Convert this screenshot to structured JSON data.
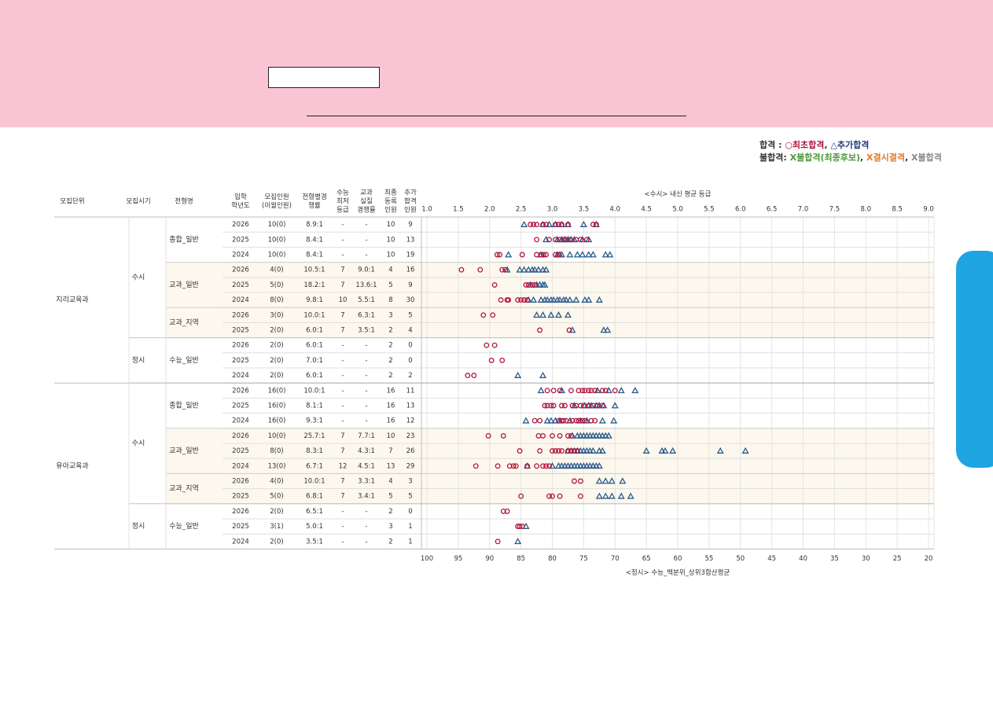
{
  "legend": {
    "pass_label": "합격",
    "pass_colon": " : ",
    "first_mark": "○",
    "first_label": "최초합격",
    "comma": ", ",
    "add_mark": "△",
    "add_label": "추가합격",
    "fail_label": "불합격:",
    "fail_waitlist": "X불합격(최종후보)",
    "fail_absent": "X결시결격",
    "fail_other": "X불합격"
  },
  "colors": {
    "first_pass": "#b3173e",
    "additional_pass": "#2a5a8c",
    "row_alt": "#fdf8ee"
  },
  "chart_data": {
    "type": "scatter",
    "title": "<수시> 내신 평균 등급",
    "xlabel": "<정시> 수능_백분위_상위3합산평균",
    "top_axis_ticks": [
      "1.0",
      "1.5",
      "2.0",
      "2.5",
      "3.0",
      "3.5",
      "4.0",
      "4.5",
      "5.0",
      "5.5",
      "6.0",
      "6.5",
      "7.0",
      "7.5",
      "8.0",
      "8.5",
      "9.0"
    ],
    "top_axis_range": [
      1.0,
      9.0
    ],
    "bottom_axis_ticks": [
      "100",
      "95",
      "90",
      "85",
      "80",
      "75",
      "70",
      "65",
      "60",
      "55",
      "50",
      "45",
      "40",
      "35",
      "30",
      "25",
      "20"
    ],
    "bottom_axis_range": [
      100,
      20
    ],
    "columns": [
      "모집단위",
      "모집시기",
      "전형명",
      "입학\n학년도",
      "모집인원\n(이월인원)",
      "전형별경\n쟁률",
      "수능\n최저\n등급",
      "교과\n실질\n경쟁률",
      "최종\n등록\n인원",
      "추가\n합격\n인원"
    ],
    "groups": [
      {
        "unit": "지리교육과",
        "periods": [
          {
            "name": "수시",
            "types": [
              {
                "name": "종합_일반",
                "rows": [
                  {
                    "year": "2026",
                    "quota": "10(0)",
                    "ratio": "8.9:1",
                    "min": "-",
                    "real": "-",
                    "enroll": "10",
                    "extra": "9",
                    "first": [
                      2.65,
                      2.7,
                      2.75,
                      2.85,
                      2.9,
                      3.05,
                      3.1,
                      3.15,
                      3.25,
                      3.65,
                      3.7
                    ],
                    "additional": [
                      2.55,
                      2.85,
                      2.95,
                      3.05,
                      3.15,
                      3.25,
                      3.5,
                      3.7
                    ]
                  },
                  {
                    "year": "2025",
                    "quota": "10(0)",
                    "ratio": "8.4:1",
                    "min": "-",
                    "real": "-",
                    "enroll": "10",
                    "extra": "13",
                    "first": [
                      2.75,
                      2.95,
                      3.05,
                      3.12,
                      3.18,
                      3.22,
                      3.28,
                      3.38,
                      3.45,
                      3.55
                    ],
                    "additional": [
                      2.9,
                      3.08,
                      3.15,
                      3.2,
                      3.25,
                      3.3,
                      3.35,
                      3.48,
                      3.58
                    ]
                  },
                  {
                    "year": "2024",
                    "quota": "10(0)",
                    "ratio": "8.4:1",
                    "min": "-",
                    "real": "-",
                    "enroll": "10",
                    "extra": "19",
                    "first": [
                      2.12,
                      2.16,
                      2.52,
                      2.75,
                      2.82,
                      2.86,
                      2.9,
                      3.05,
                      3.1
                    ],
                    "additional": [
                      2.3,
                      2.82,
                      3.08,
                      3.12,
                      3.15,
                      3.28,
                      3.4,
                      3.48,
                      3.58,
                      3.65,
                      3.85,
                      3.92
                    ]
                  }
                ]
              },
              {
                "name": "교과_일반",
                "rows": [
                  {
                    "year": "2026",
                    "quota": "4(0)",
                    "ratio": "10.5:1",
                    "min": "7",
                    "real": "9.0:1",
                    "enroll": "4",
                    "extra": "16",
                    "first": [
                      1.55,
                      1.85,
                      2.2,
                      2.25
                    ],
                    "additional": [
                      2.28,
                      2.48,
                      2.55,
                      2.62,
                      2.68,
                      2.72,
                      2.78,
                      2.85,
                      2.9
                    ]
                  },
                  {
                    "year": "2025",
                    "quota": "5(0)",
                    "ratio": "18.2:1",
                    "min": "7",
                    "real": "13.6:1",
                    "enroll": "5",
                    "extra": "9",
                    "first": [
                      2.08,
                      2.58,
                      2.62,
                      2.68,
                      2.72
                    ],
                    "additional": [
                      2.65,
                      2.75,
                      2.8,
                      2.85,
                      2.88
                    ]
                  },
                  {
                    "year": "2024",
                    "quota": "8(0)",
                    "ratio": "9.8:1",
                    "min": "10",
                    "real": "5.5:1",
                    "enroll": "8",
                    "extra": "30",
                    "first": [
                      2.18,
                      2.28,
                      2.3,
                      2.45,
                      2.5,
                      2.55,
                      2.6
                    ],
                    "additional": [
                      2.62,
                      2.7,
                      2.82,
                      2.88,
                      2.92,
                      2.98,
                      3.02,
                      3.08,
                      3.12,
                      3.18,
                      3.22,
                      3.28,
                      3.38,
                      3.52,
                      3.58,
                      3.75
                    ]
                  }
                ]
              },
              {
                "name": "교과_지역",
                "rows": [
                  {
                    "year": "2026",
                    "quota": "3(0)",
                    "ratio": "10.0:1",
                    "min": "7",
                    "real": "6.3:1",
                    "enroll": "3",
                    "extra": "5",
                    "first": [
                      1.9,
                      2.05
                    ],
                    "additional": [
                      2.75,
                      2.85,
                      2.98,
                      3.1,
                      3.25
                    ]
                  },
                  {
                    "year": "2025",
                    "quota": "2(0)",
                    "ratio": "6.0:1",
                    "min": "7",
                    "real": "3.5:1",
                    "enroll": "2",
                    "extra": "4",
                    "first": [
                      2.8,
                      3.27
                    ],
                    "additional": [
                      3.32,
                      3.82,
                      3.88
                    ]
                  }
                ]
              }
            ]
          },
          {
            "name": "정시",
            "types": [
              {
                "name": "수능_일반",
                "rows": [
                  {
                    "year": "2026",
                    "quota": "2(0)",
                    "ratio": "6.0:1",
                    "min": "-",
                    "real": "-",
                    "enroll": "2",
                    "extra": "0",
                    "first": [
                      90.5,
                      89.2
                    ],
                    "additional": []
                  },
                  {
                    "year": "2025",
                    "quota": "2(0)",
                    "ratio": "7.0:1",
                    "min": "-",
                    "real": "-",
                    "enroll": "2",
                    "extra": "0",
                    "first": [
                      89.7,
                      88.0
                    ],
                    "additional": []
                  },
                  {
                    "year": "2024",
                    "quota": "2(0)",
                    "ratio": "6.0:1",
                    "min": "-",
                    "real": "-",
                    "enroll": "2",
                    "extra": "2",
                    "first": [
                      93.5,
                      92.5
                    ],
                    "additional": [
                      85.5,
                      81.5
                    ]
                  }
                ]
              }
            ]
          }
        ]
      },
      {
        "unit": "유아교육과",
        "periods": [
          {
            "name": "수시",
            "types": [
              {
                "name": "종합_일반",
                "rows": [
                  {
                    "year": "2026",
                    "quota": "16(0)",
                    "ratio": "10.0:1",
                    "min": "-",
                    "real": "-",
                    "enroll": "16",
                    "extra": "11",
                    "first": [
                      2.92,
                      3.02,
                      3.12,
                      3.3,
                      3.42,
                      3.48,
                      3.52,
                      3.58,
                      3.62,
                      3.68,
                      3.8,
                      3.85,
                      4.0
                    ],
                    "additional": [
                      2.82,
                      3.15,
                      3.72,
                      3.9,
                      4.1,
                      4.32
                    ]
                  },
                  {
                    "year": "2025",
                    "quota": "16(0)",
                    "ratio": "8.1:1",
                    "min": "-",
                    "real": "-",
                    "enroll": "16",
                    "extra": "13",
                    "first": [
                      2.88,
                      2.92,
                      2.98,
                      3.02,
                      3.15,
                      3.2,
                      3.32,
                      3.38,
                      3.45,
                      3.5,
                      3.58,
                      3.65,
                      3.72,
                      3.8
                    ],
                    "additional": [
                      3.35,
                      3.52,
                      3.58,
                      3.62,
                      3.7,
                      3.75,
                      3.82,
                      4.0
                    ]
                  },
                  {
                    "year": "2024",
                    "quota": "16(0)",
                    "ratio": "9.3:1",
                    "min": "-",
                    "real": "-",
                    "enroll": "16",
                    "extra": "12",
                    "first": [
                      2.72,
                      2.8,
                      3.1,
                      3.15,
                      3.18,
                      3.22,
                      3.32,
                      3.38,
                      3.42,
                      3.48,
                      3.52,
                      3.62,
                      3.68
                    ],
                    "additional": [
                      2.58,
                      2.92,
                      2.98,
                      3.05,
                      3.12,
                      3.28,
                      3.45,
                      3.55,
                      3.8,
                      3.98
                    ]
                  }
                ]
              },
              {
                "name": "교과_일반",
                "rows": [
                  {
                    "year": "2026",
                    "quota": "10(0)",
                    "ratio": "25.7:1",
                    "min": "7",
                    "real": "7.7:1",
                    "enroll": "10",
                    "extra": "23",
                    "first": [
                      90.2,
                      87.8,
                      82.2,
                      81.5,
                      80.0,
                      78.8,
                      77.5,
                      77.0
                    ],
                    "additional": [
                      76.8,
                      76.0,
                      75.5,
                      75.0,
                      74.5,
                      74.0,
                      73.5,
                      73.0,
                      72.5,
                      72.0,
                      71.5,
                      71.0
                    ]
                  },
                  {
                    "year": "2025",
                    "quota": "8(0)",
                    "ratio": "8.3:1",
                    "min": "7",
                    "real": "4.3:1",
                    "enroll": "7",
                    "extra": "26",
                    "first": [
                      85.2,
                      82.0,
                      80.0,
                      79.5,
                      79.0,
                      78.5,
                      77.5,
                      77.0,
                      76.5,
                      76.0
                    ],
                    "additional": [
                      77.5,
                      77.0,
                      76.5,
                      76.0,
                      75.5,
                      75.0,
                      74.5,
                      74.0,
                      73.5,
                      72.5,
                      72.0,
                      65.0,
                      62.5,
                      62.0,
                      60.8,
                      53.2,
                      49.2
                    ]
                  },
                  {
                    "year": "2024",
                    "quota": "13(0)",
                    "ratio": "6.7:1",
                    "min": "12",
                    "real": "4.5:1",
                    "enroll": "13",
                    "extra": "29",
                    "first": [
                      92.2,
                      88.7,
                      86.8,
                      86.2,
                      85.8,
                      84.0,
                      82.5,
                      81.5,
                      81.0,
                      80.5
                    ],
                    "additional": [
                      84.0,
                      80.0,
                      79.0,
                      78.5,
                      78.0,
                      77.5,
                      77.0,
                      76.5,
                      76.0,
                      75.5,
                      75.0,
                      74.5,
                      74.0,
                      73.5,
                      73.0,
                      72.5
                    ]
                  }
                ]
              },
              {
                "name": "교과_지역",
                "rows": [
                  {
                    "year": "2026",
                    "quota": "4(0)",
                    "ratio": "10.0:1",
                    "min": "7",
                    "real": "3.3:1",
                    "enroll": "4",
                    "extra": "3",
                    "first": [
                      76.5,
                      75.5
                    ],
                    "additional": [
                      72.5,
                      71.5,
                      70.5,
                      68.8
                    ]
                  },
                  {
                    "year": "2025",
                    "quota": "5(0)",
                    "ratio": "6.8:1",
                    "min": "7",
                    "real": "3.4:1",
                    "enroll": "5",
                    "extra": "5",
                    "first": [
                      85.0,
                      80.5,
                      80.0,
                      78.8,
                      75.5
                    ],
                    "additional": [
                      72.5,
                      71.5,
                      70.5,
                      69.0,
                      67.5
                    ]
                  }
                ]
              }
            ]
          },
          {
            "name": "정시",
            "types": [
              {
                "name": "수능_일반",
                "rows": [
                  {
                    "year": "2026",
                    "quota": "2(0)",
                    "ratio": "6.5:1",
                    "min": "-",
                    "real": "-",
                    "enroll": "2",
                    "extra": "0",
                    "first": [
                      87.8,
                      87.2
                    ],
                    "additional": []
                  },
                  {
                    "year": "2025",
                    "quota": "3(1)",
                    "ratio": "5.0:1",
                    "min": "-",
                    "real": "-",
                    "enroll": "3",
                    "extra": "1",
                    "first": [
                      85.5,
                      85.2,
                      84.8
                    ],
                    "additional": [
                      84.2
                    ]
                  },
                  {
                    "year": "2024",
                    "quota": "2(0)",
                    "ratio": "3.5:1",
                    "min": "-",
                    "real": "-",
                    "enroll": "2",
                    "extra": "1",
                    "first": [
                      88.7
                    ],
                    "additional": [
                      85.5
                    ]
                  }
                ]
              }
            ]
          }
        ]
      }
    ]
  }
}
